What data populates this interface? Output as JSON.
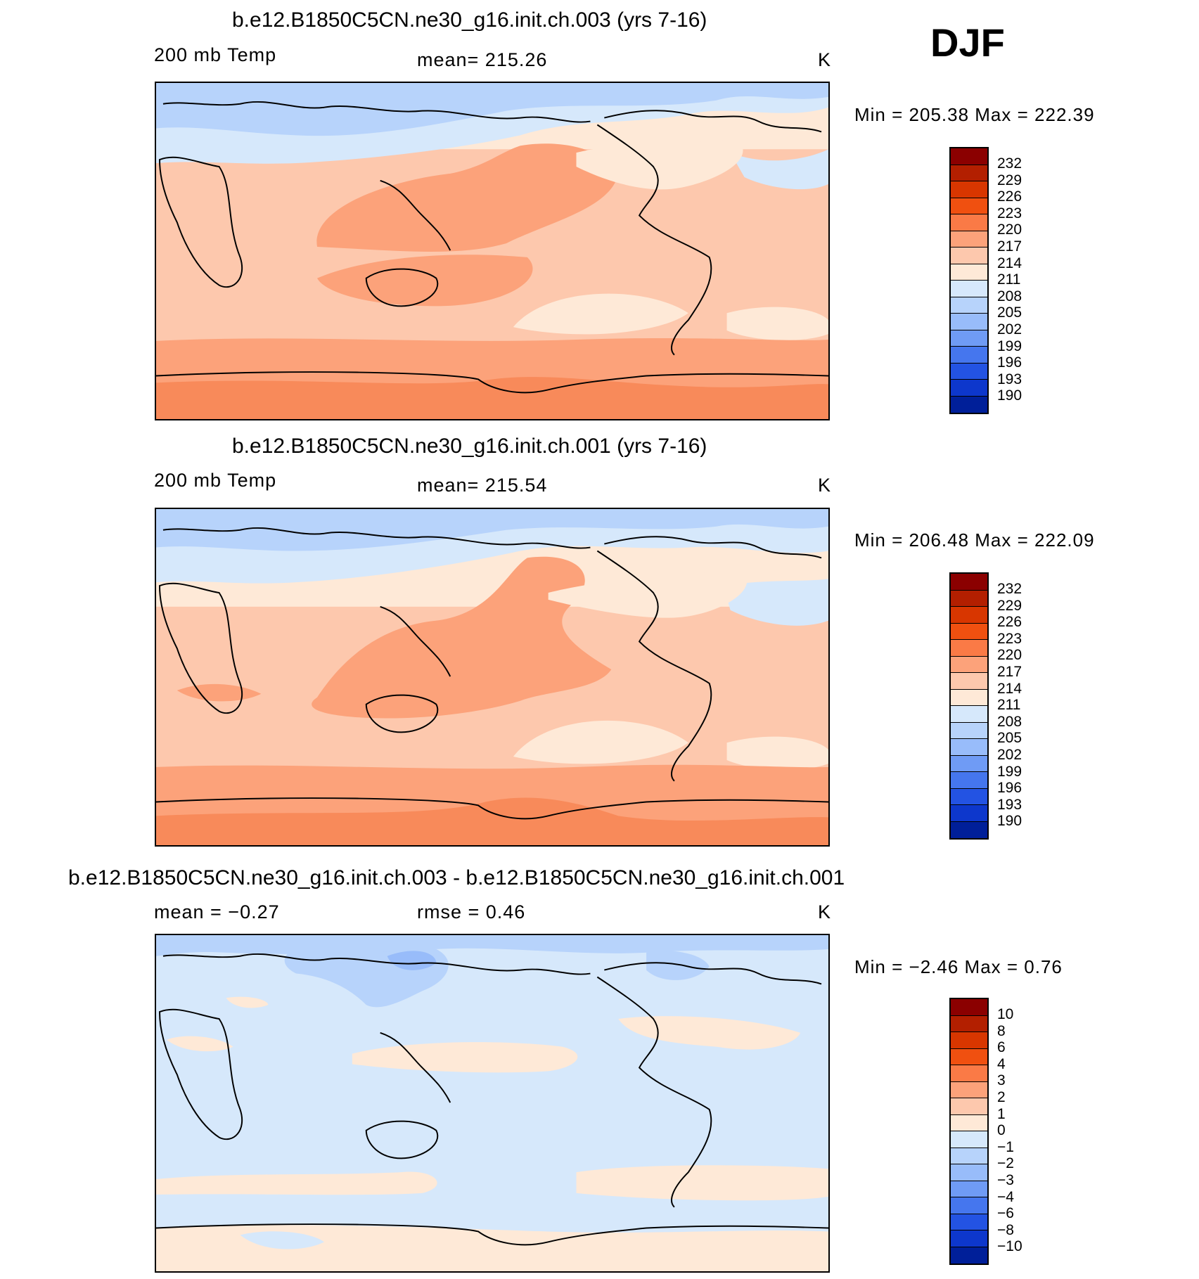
{
  "season": "DJF",
  "panels": [
    {
      "title": "b.e12.B1850C5CN.ne30_g16.init.ch.003 (yrs 7-16)",
      "variable": "200 mb Temp",
      "stat": "mean=  215.26",
      "units": "K",
      "minmax": "Min  =  205.38  Max  =  222.39",
      "colorbar_labels": [
        "232",
        "229",
        "226",
        "223",
        "220",
        "217",
        "214",
        "211",
        "208",
        "205",
        "202",
        "199",
        "196",
        "193",
        "190"
      ]
    },
    {
      "title": "b.e12.B1850C5CN.ne30_g16.init.ch.001 (yrs 7-16)",
      "variable": "200 mb Temp",
      "stat": "mean=  215.54",
      "units": "K",
      "minmax": "Min  =  206.48  Max  =  222.09",
      "colorbar_labels": [
        "232",
        "229",
        "226",
        "223",
        "220",
        "217",
        "214",
        "211",
        "208",
        "205",
        "202",
        "199",
        "196",
        "193",
        "190"
      ]
    },
    {
      "title": "b.e12.B1850C5CN.ne30_g16.init.ch.003 - b.e12.B1850C5CN.ne30_g16.init.ch.001",
      "stat_left": "mean  =     −0.27",
      "stat_right": "rmse  =     0.46",
      "units": "K",
      "minmax": "Min  =     −2.46  Max  =     0.76",
      "colorbar_labels": [
        "10",
        "8",
        "6",
        "4",
        "3",
        "2",
        "1",
        "0",
        "−1",
        "−2",
        "−3",
        "−4",
        "−6",
        "−8",
        "−10"
      ]
    }
  ],
  "colorbar_colors": [
    "#8b0000",
    "#b31f00",
    "#d83600",
    "#f05010",
    "#fa7a46",
    "#fca27a",
    "#fdc8ad",
    "#fee9d7",
    "#d6e8fb",
    "#b7d3fb",
    "#98bcfa",
    "#6f9bf5",
    "#4576ee",
    "#2353e3",
    "#0d37cc",
    "#001f99",
    "#000d80"
  ]
}
